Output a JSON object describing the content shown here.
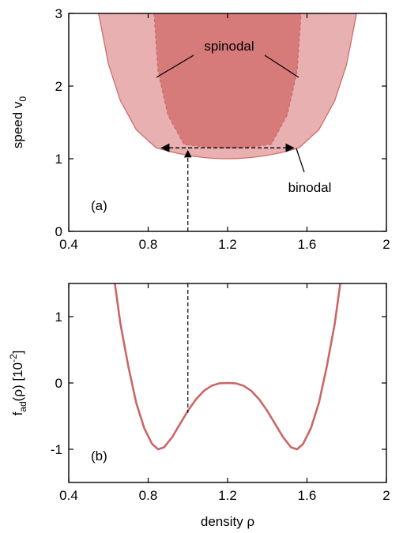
{
  "colors": {
    "binodal_fill": "#e8b0b0",
    "spinodal_fill": "#d67a7a",
    "curve": "#cc6666",
    "frame": "#000000"
  },
  "chart_data": [
    {
      "type": "area",
      "panel_label": "(a)",
      "xlabel": "",
      "ylabel_parts": [
        "speed v",
        "0"
      ],
      "xlim": [
        0.4,
        2.0
      ],
      "ylim": [
        0,
        3
      ],
      "xticks": [
        "0.4",
        "0.8",
        "1.2",
        "1.6",
        "2"
      ],
      "yticks": [
        "0",
        "1",
        "2",
        "3"
      ],
      "regions": [
        {
          "name": "binodal",
          "label": "binodal",
          "v_min": 1.0,
          "rho_center": 1.2,
          "left_boundary": [
            [
              0.84,
              1.15
            ],
            [
              0.74,
              1.4
            ],
            [
              0.66,
              1.8
            ],
            [
              0.6,
              2.3
            ],
            [
              0.55,
              3.0
            ]
          ],
          "right_boundary": [
            [
              1.56,
              1.15
            ],
            [
              1.66,
              1.4
            ],
            [
              1.74,
              1.8
            ],
            [
              1.8,
              2.3
            ],
            [
              1.85,
              3.0
            ]
          ]
        },
        {
          "name": "spinodal",
          "label": "spinodal",
          "v_min": 1.15,
          "rho_center": 1.2,
          "left_boundary": [
            [
              0.98,
              1.2
            ],
            [
              0.9,
              1.6
            ],
            [
              0.85,
              2.2
            ],
            [
              0.83,
              3.0
            ]
          ],
          "right_boundary": [
            [
              1.42,
              1.2
            ],
            [
              1.5,
              1.6
            ],
            [
              1.55,
              2.2
            ],
            [
              1.57,
              3.0
            ]
          ]
        }
      ],
      "tie_line": {
        "v": 1.15,
        "rho_left": 0.85,
        "rho_right": 1.55
      },
      "vertical_marker": {
        "rho": 1.0,
        "v_to": 1.15
      },
      "annotations": [
        "spinodal",
        "binodal"
      ]
    },
    {
      "type": "line",
      "panel_label": "(b)",
      "xlabel": "density ρ",
      "ylabel_parts": [
        "f",
        "ad",
        "(ρ) [10",
        "-2",
        "]"
      ],
      "xlim": [
        0.4,
        2.0
      ],
      "ylim": [
        -1.5,
        1.5
      ],
      "xticks": [
        "0.4",
        "0.8",
        "1.2",
        "1.6",
        "2"
      ],
      "yticks": [
        "-1",
        "0",
        "1"
      ],
      "series": [
        {
          "x": [
            0.63,
            0.66,
            0.7,
            0.74,
            0.78,
            0.82,
            0.85,
            0.88,
            0.92,
            0.96,
            1.0,
            1.04,
            1.08,
            1.12,
            1.16,
            1.2,
            1.24,
            1.28,
            1.32,
            1.36,
            1.4,
            1.44,
            1.48,
            1.52,
            1.55,
            1.58,
            1.62,
            1.66,
            1.7,
            1.74,
            1.77
          ],
          "y": [
            1.55,
            0.9,
            0.25,
            -0.3,
            -0.68,
            -0.92,
            -1.0,
            -0.97,
            -0.82,
            -0.62,
            -0.42,
            -0.25,
            -0.12,
            -0.04,
            -0.005,
            0.0,
            -0.005,
            -0.04,
            -0.12,
            -0.25,
            -0.42,
            -0.62,
            -0.82,
            -0.97,
            -1.0,
            -0.92,
            -0.68,
            -0.3,
            0.25,
            0.9,
            1.55
          ]
        }
      ],
      "vertical_marker": {
        "rho": 1.0,
        "y_from": 1.5,
        "y_to": -0.45
      }
    }
  ]
}
